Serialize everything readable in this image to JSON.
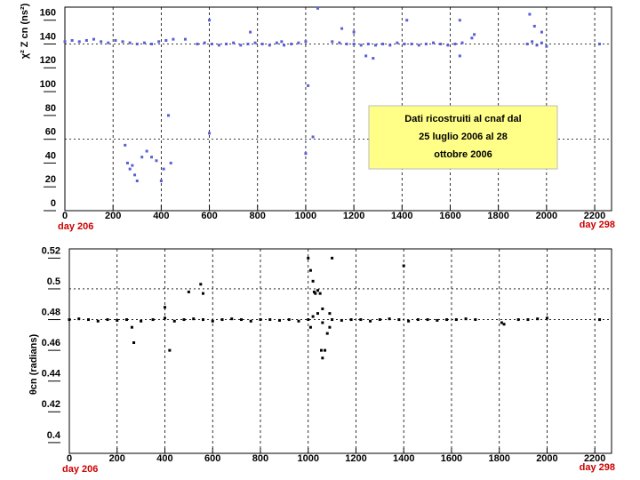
{
  "chart_data": [
    {
      "type": "scatter",
      "y_label": "χ² Z cn (ns²)",
      "corner_labels": [
        "day 206",
        "day 298"
      ],
      "annotation": [
        "Dati ricostruiti al cnaf dal",
        "25 luglio 2006 al 28",
        "ottobre 2006"
      ],
      "xlim": [
        0,
        2270
      ],
      "ylim": [
        0,
        171
      ],
      "xticks": [
        0,
        200,
        400,
        600,
        800,
        1000,
        1200,
        1400,
        1600,
        1800,
        2000,
        2200
      ],
      "yticks": [
        0,
        20,
        40,
        60,
        80,
        100,
        120,
        140,
        160
      ],
      "grid_y": [
        60,
        140
      ],
      "grid_x": true,
      "series": [
        {
          "color": "#5a5fd6",
          "x": [
            0,
            30,
            60,
            90,
            120,
            150,
            180,
            210,
            240,
            270,
            300,
            330,
            360,
            390,
            420,
            450,
            500,
            550,
            580,
            610,
            640,
            670,
            700,
            730,
            760,
            790,
            820,
            850,
            880,
            910,
            940,
            970,
            1000,
            1110,
            1140,
            1170,
            1200,
            1230,
            1260,
            1290,
            1320,
            1350,
            1380,
            1410,
            1440,
            1470,
            1500,
            1530,
            1560,
            1590,
            1620,
            1650,
            1920,
            1940,
            1960,
            1980,
            2000,
            2220,
            250,
            260,
            270,
            280,
            290,
            300,
            320,
            340,
            360,
            380,
            400,
            410,
            440,
            600,
            770,
            900,
            1000,
            1010,
            1030,
            1050,
            1200,
            1250,
            1280,
            1420,
            1640,
            1690,
            1700,
            1930,
            1950,
            1980,
            430,
            600,
            1150,
            1640
          ],
          "y": [
            142,
            143,
            142,
            143,
            144,
            142,
            141,
            143,
            142,
            141,
            140,
            141,
            140,
            142,
            143,
            144,
            144,
            140,
            141,
            140,
            139,
            140,
            141,
            139,
            140,
            141,
            140,
            139,
            141,
            139,
            140,
            141,
            142,
            142,
            141,
            140,
            140,
            139,
            140,
            139,
            140,
            139,
            141,
            140,
            140,
            139,
            140,
            141,
            140,
            139,
            140,
            141,
            140,
            142,
            139,
            141,
            138,
            140,
            55,
            40,
            35,
            38,
            30,
            25,
            45,
            50,
            45,
            42,
            25,
            35,
            40,
            65,
            150,
            142,
            48,
            105,
            62,
            170,
            150,
            130,
            128,
            160,
            160,
            145,
            148,
            165,
            155,
            150,
            80,
            160,
            153,
            130
          ]
        }
      ]
    },
    {
      "type": "scatter",
      "y_label": "θcn (radians)",
      "corner_labels": [
        "day 206",
        "day 298"
      ],
      "xlim": [
        0,
        2270
      ],
      "ylim": [
        0.393,
        0.526
      ],
      "xticks": [
        0,
        200,
        400,
        600,
        800,
        1000,
        1200,
        1400,
        1600,
        1800,
        2000,
        2200
      ],
      "yticks": [
        0.4,
        0.42,
        0.44,
        0.46,
        0.48,
        0.5,
        0.52
      ],
      "grid_y": [
        0.48,
        0.5
      ],
      "grid_x": true,
      "series": [
        {
          "color": "#000000",
          "x": [
            0,
            40,
            80,
            120,
            160,
            200,
            240,
            262,
            270,
            300,
            350,
            400,
            440,
            480,
            520,
            560,
            600,
            640,
            680,
            720,
            760,
            800,
            840,
            880,
            920,
            960,
            1000,
            1020,
            1040,
            1060,
            1100,
            1140,
            1180,
            1220,
            1260,
            1300,
            1340,
            1380,
            1420,
            1460,
            1500,
            1540,
            1580,
            1620,
            1660,
            1700,
            1810,
            1820,
            1880,
            1920,
            1960,
            2000,
            2220,
            1000,
            1010,
            1020,
            1025,
            1030,
            1040,
            1050,
            1060,
            1055,
            1070,
            1080,
            1090,
            1010,
            1060,
            1100,
            1400,
            550,
            500,
            560,
            400,
            420,
            1090
          ],
          "y": [
            0.48,
            0.4805,
            0.48,
            0.479,
            0.48,
            0.4795,
            0.48,
            0.475,
            0.465,
            0.479,
            0.48,
            0.481,
            0.479,
            0.48,
            0.4805,
            0.48,
            0.479,
            0.48,
            0.4805,
            0.48,
            0.479,
            0.48,
            0.48,
            0.4795,
            0.48,
            0.479,
            0.48,
            0.482,
            0.484,
            0.478,
            0.48,
            0.4795,
            0.48,
            0.48,
            0.479,
            0.48,
            0.4805,
            0.48,
            0.479,
            0.48,
            0.48,
            0.4795,
            0.48,
            0.48,
            0.4805,
            0.48,
            0.478,
            0.477,
            0.48,
            0.48,
            0.4805,
            0.481,
            0.48,
            0.52,
            0.512,
            0.505,
            0.498,
            0.497,
            0.499,
            0.497,
            0.487,
            0.46,
            0.46,
            0.471,
            0.475,
            0.475,
            0.455,
            0.52,
            0.515,
            0.503,
            0.498,
            0.497,
            0.488,
            0.46,
            0.484
          ]
        }
      ]
    }
  ]
}
